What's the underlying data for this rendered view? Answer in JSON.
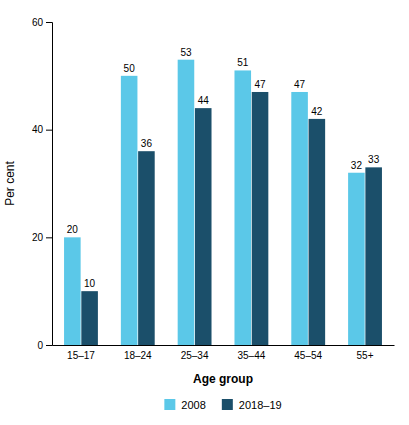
{
  "chart_data": {
    "type": "bar",
    "xlabel": "Age group",
    "ylabel": "Per cent",
    "categories": [
      "15–17",
      "18–24",
      "25–34",
      "35–44",
      "45–54",
      "55+"
    ],
    "series": [
      {
        "name": "2008",
        "color": "#5BC8E8",
        "values": [
          20,
          50,
          53,
          51,
          47,
          32
        ]
      },
      {
        "name": "2018–19",
        "color": "#1B4F6A",
        "values": [
          10,
          36,
          44,
          47,
          42,
          33
        ]
      }
    ],
    "ylim": [
      0,
      60
    ],
    "yticks": [
      0,
      20,
      40,
      60
    ],
    "grid": false,
    "legend": "bottom",
    "data_labels": true
  }
}
